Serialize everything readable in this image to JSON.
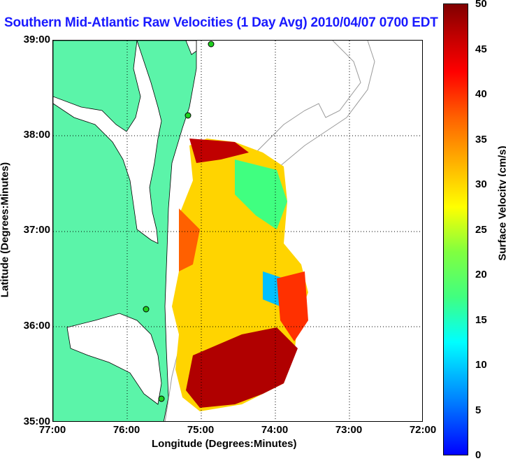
{
  "title": "Southern Mid-Atlantic Raw Velocities (1 Day Avg) 2010/04/07 0700 EDT",
  "xlabel": "Longitude (Degrees:Minutes)",
  "ylabel": "Latitude (Degrees:Minutes)",
  "colorbar_label": "Surface Velocity (cm/s)",
  "x_ticks": [
    "77:00",
    "76:00",
    "75:00",
    "74:00",
    "73:00",
    "72:00"
  ],
  "y_ticks": [
    "39:00",
    "38:00",
    "37:00",
    "36:00",
    "35:00"
  ],
  "colorbar_ticks": [
    "50",
    "45",
    "40",
    "35",
    "30",
    "25",
    "20",
    "15",
    "10",
    "5",
    "0"
  ],
  "colors": {
    "land": "#5bf4a9",
    "title": "#1a1aff",
    "bathymetry": "#9a9a9a"
  },
  "map_extent": {
    "lon": [
      -77,
      -72
    ],
    "lat": [
      35,
      39
    ],
    "velocity_range_cm_s": [
      0,
      50
    ]
  }
}
